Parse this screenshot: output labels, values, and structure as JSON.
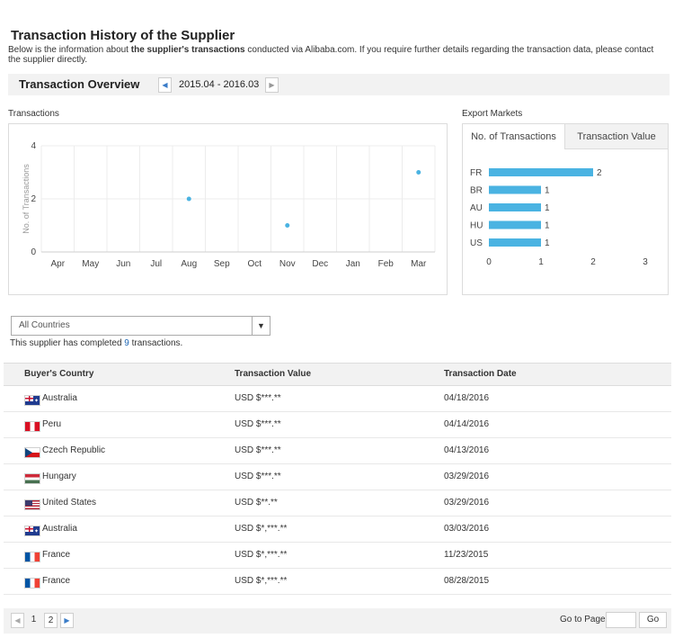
{
  "header": {
    "title": "Transaction History of the Supplier",
    "intro_before": "Below is the information about ",
    "intro_bold": "the supplier's transactions",
    "intro_after": " conducted via Alibaba.com. If you require further details regarding the transaction data, please contact the supplier directly."
  },
  "overview": {
    "title": "Transaction Overview",
    "date_range": "2015.04 - 2016.03",
    "prev_icon": "caret-left-icon",
    "next_icon": "caret-right-icon"
  },
  "transactions_section": {
    "label": "Transactions"
  },
  "export_section": {
    "label": "Export Markets",
    "tabs": [
      {
        "label": "No. of Transactions",
        "active": true
      },
      {
        "label": "Transaction Value",
        "active": false
      }
    ]
  },
  "chart_data": [
    {
      "type": "scatter",
      "ylabel": "No. of Transactions",
      "categories": [
        "Apr",
        "May",
        "Jun",
        "Jul",
        "Aug",
        "Sep",
        "Oct",
        "Nov",
        "Dec",
        "Jan",
        "Feb",
        "Mar"
      ],
      "points": [
        {
          "x": "Aug",
          "y": 2
        },
        {
          "x": "Nov",
          "y": 1
        },
        {
          "x": "Mar",
          "y": 3
        }
      ],
      "yticks": [
        "0",
        "2",
        "4"
      ],
      "ylim": [
        0,
        4
      ],
      "grid": true,
      "color": "#4ab3e2"
    },
    {
      "type": "bar",
      "orientation": "horizontal",
      "categories": [
        "FR",
        "BR",
        "AU",
        "HU",
        "US"
      ],
      "values": [
        2,
        1,
        1,
        1,
        1
      ],
      "value_labels": [
        "2",
        "1",
        "1",
        "1",
        "1"
      ],
      "xticks": [
        "0",
        "1",
        "2",
        "3"
      ],
      "xlim": [
        0,
        3
      ],
      "color": "#4ab3e2"
    }
  ],
  "filter": {
    "selected": "All Countries",
    "arrow_icon": "caret-down-icon"
  },
  "summary": {
    "before": "This supplier has completed ",
    "count": "9",
    "after": " transactions."
  },
  "table": {
    "headers": [
      "Buyer's Country",
      "Transaction Value",
      "Transaction Date"
    ],
    "rows": [
      {
        "country": "Australia",
        "flag": "au",
        "value": "USD $***.**",
        "date": "04/18/2016"
      },
      {
        "country": "Peru",
        "flag": "pe",
        "value": "USD $***.**",
        "date": "04/14/2016"
      },
      {
        "country": "Czech Republic",
        "flag": "cz",
        "value": "USD $***.**",
        "date": "04/13/2016"
      },
      {
        "country": "Hungary",
        "flag": "hu",
        "value": "USD $***.**",
        "date": "03/29/2016"
      },
      {
        "country": "United States",
        "flag": "us",
        "value": "USD $**.**",
        "date": "03/29/2016"
      },
      {
        "country": "Australia",
        "flag": "au",
        "value": "USD $*,***.**",
        "date": "03/03/2016"
      },
      {
        "country": "France",
        "flag": "fr",
        "value": "USD $*,***.**",
        "date": "11/23/2015"
      },
      {
        "country": "France",
        "flag": "fr",
        "value": "USD $*,***.**",
        "date": "08/28/2015"
      }
    ]
  },
  "pagination": {
    "pages": [
      "1",
      "2"
    ],
    "goto_label": "Go to Page",
    "go_label": "Go",
    "goto_value": ""
  }
}
